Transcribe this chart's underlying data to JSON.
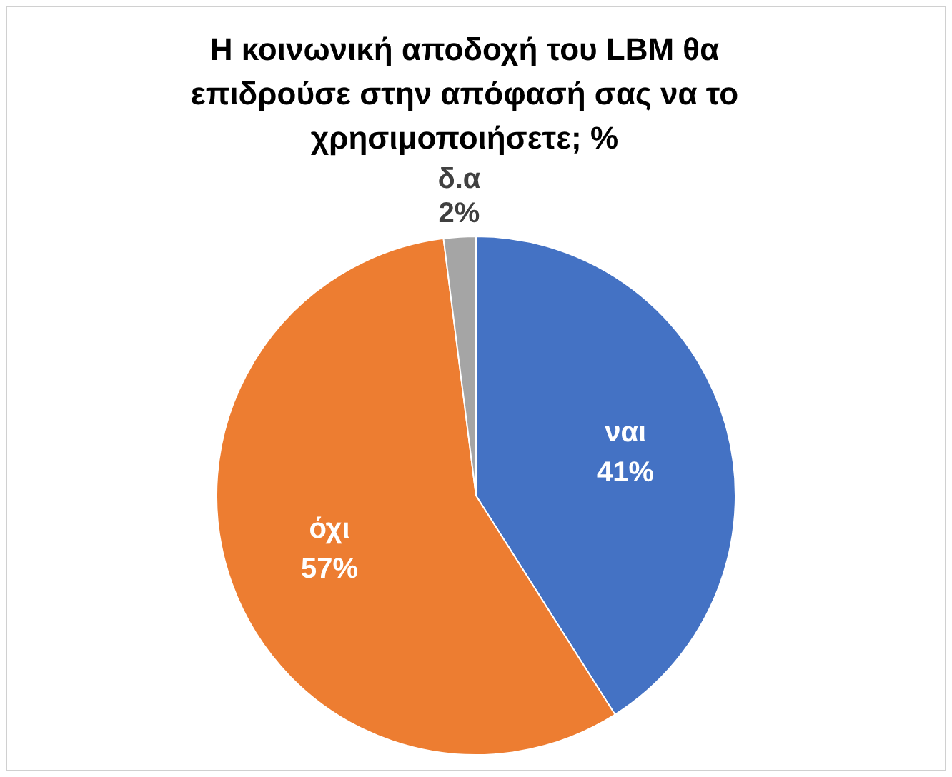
{
  "chart_data": {
    "type": "pie",
    "title": "Η κοινωνική αποδοχή του LBM  θα επιδρούσε στην απόφασή σας να το χρησιμοποιήσετε; %",
    "categories": [
      "ναι",
      "όχι",
      "δ.α"
    ],
    "values": [
      41,
      57,
      2
    ],
    "colors": [
      "#4472c4",
      "#ed7d31",
      "#a5a5a5"
    ],
    "value_labels": [
      "41%",
      "57%",
      "2%"
    ],
    "legend": false
  }
}
